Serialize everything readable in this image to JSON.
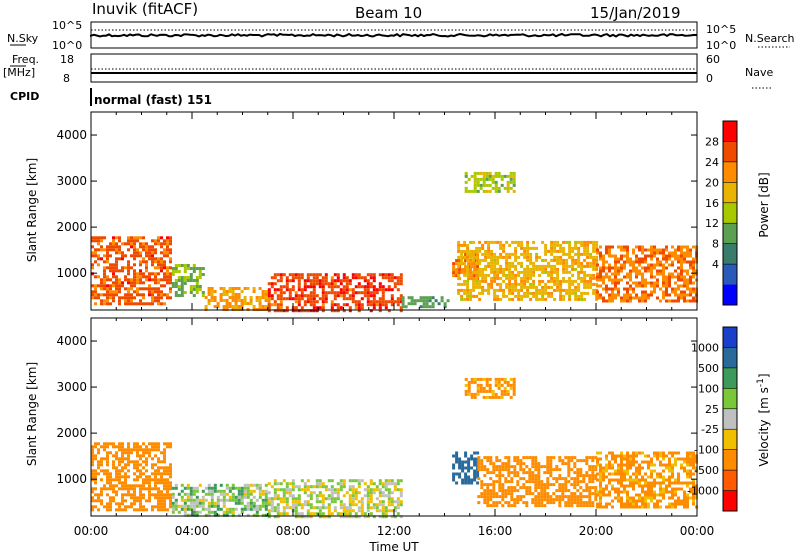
{
  "header": {
    "station": "Inuvik (fitACF)",
    "beam": "Beam 10",
    "date": "15/Jan/2019"
  },
  "top_panels": {
    "nsky_label": "N.Sky",
    "nsky_ticks": [
      "10^5",
      "10^0"
    ],
    "nsearch_label": "N.Search",
    "nsearch_ticks": [
      "10^5",
      "10^0"
    ],
    "freq_label": "Freq.",
    "freq_unit": "[MHz]",
    "freq_ticks": [
      "18",
      "8"
    ],
    "nave_label": "Nave",
    "nave_ticks": [
      "60",
      "0"
    ],
    "cpid_label": "CPID",
    "cpid_value": "normal (fast) 151"
  },
  "chart_data": [
    {
      "type": "heatmap",
      "panel": "power",
      "ylabel": "Slant Range [km]",
      "xlabel": "",
      "yticks": [
        "1000",
        "2000",
        "3000",
        "4000"
      ],
      "ylim": [
        200,
        4500
      ],
      "xlim_hours": [
        0,
        24
      ],
      "colorbar_label": "Power [dB]",
      "colorbar_ticks": [
        "28",
        "24",
        "20",
        "16",
        "12",
        "8",
        "4"
      ],
      "colorbar_colors": [
        "#ff0000",
        "#f04a00",
        "#ff8c00",
        "#e8b400",
        "#a8c800",
        "#5aa050",
        "#3a7c6c",
        "#2a5ab8",
        "#0000ff"
      ],
      "regions": [
        {
          "t0": 0.0,
          "t1": 3.2,
          "r0": 350,
          "r1": 1800,
          "level": 26
        },
        {
          "t0": 3.2,
          "t1": 4.5,
          "r0": 500,
          "r1": 1200,
          "level": 14
        },
        {
          "t0": 4.5,
          "t1": 7.0,
          "r0": 200,
          "r1": 700,
          "level": 22
        },
        {
          "t0": 7.0,
          "t1": 12.3,
          "r0": 200,
          "r1": 1000,
          "level": 27
        },
        {
          "t0": 12.3,
          "t1": 14.2,
          "r0": 250,
          "r1": 500,
          "level": 12
        },
        {
          "t0": 14.3,
          "t1": 15.3,
          "r0": 900,
          "r1": 1500,
          "level": 24
        },
        {
          "t0": 14.8,
          "t1": 16.8,
          "r0": 2800,
          "r1": 3200,
          "level": 16
        },
        {
          "t0": 14.5,
          "t1": 20.0,
          "r0": 400,
          "r1": 1700,
          "level": 20
        },
        {
          "t0": 20.0,
          "t1": 24.0,
          "r0": 400,
          "r1": 1600,
          "level": 24
        }
      ]
    },
    {
      "type": "heatmap",
      "panel": "velocity",
      "ylabel": "Slant Range [km]",
      "xlabel": "Time UT",
      "yticks": [
        "1000",
        "2000",
        "3000",
        "4000"
      ],
      "xticks": [
        "00:00",
        "04:00",
        "08:00",
        "12:00",
        "16:00",
        "20:00",
        "00:00"
      ],
      "ylim": [
        200,
        4500
      ],
      "xlim_hours": [
        0,
        24
      ],
      "colorbar_label": "Velocity",
      "colorbar_unit": "[m s",
      "colorbar_unit_sup": "-1",
      "colorbar_unit_close": "]",
      "colorbar_ticks": [
        "1000",
        "500",
        "100",
        "25",
        "-25",
        "-100",
        "-500",
        "-1000"
      ],
      "colorbar_colors": [
        "#1a3fc8",
        "#2a6a9a",
        "#3c9a5a",
        "#78c83a",
        "#c0c0c0",
        "#f0c000",
        "#ff8c00",
        "#ff5a00",
        "#ff0000"
      ],
      "regions": [
        {
          "t0": 0.0,
          "t1": 3.2,
          "r0": 350,
          "r1": 1800,
          "level": -400
        },
        {
          "t0": 3.2,
          "t1": 7.0,
          "r0": 200,
          "r1": 900,
          "level": 60
        },
        {
          "t0": 7.0,
          "t1": 12.3,
          "r0": 200,
          "r1": 1000,
          "level": 0
        },
        {
          "t0": 14.3,
          "t1": 15.3,
          "r0": 900,
          "r1": 1600,
          "level": 700
        },
        {
          "t0": 14.8,
          "t1": 16.8,
          "r0": 2800,
          "r1": 3200,
          "level": -150
        },
        {
          "t0": 15.3,
          "t1": 20.0,
          "r0": 400,
          "r1": 1500,
          "level": -400
        },
        {
          "t0": 20.0,
          "t1": 24.0,
          "r0": 400,
          "r1": 1600,
          "level": -150
        }
      ]
    }
  ]
}
